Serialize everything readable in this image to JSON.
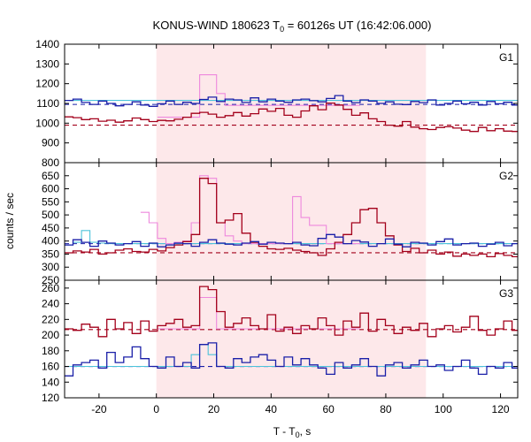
{
  "chart_data": {
    "type": "line",
    "title_main": "KONUS-WIND 180623 T",
    "title_sub": "0",
    "title_rest": " = 60126s UT (16:42:06.000)",
    "xlabel_main": "T - T",
    "xlabel_sub": "0",
    "xlabel_rest": ", s",
    "ylabel": "counts / sec",
    "xlim": [
      -32,
      126
    ],
    "xticks": [
      -20,
      0,
      20,
      40,
      60,
      80,
      100,
      120
    ],
    "shade_range": [
      0,
      94
    ],
    "colors": {
      "shade": "#fde8ea",
      "dark_red": "#a3001b",
      "blue": "#1a1fa8",
      "pink": "#ee88dd",
      "cyan": "#4cc3da"
    },
    "panels": [
      {
        "name": "G1",
        "ylim": [
          800,
          1400
        ],
        "yticks": [
          800,
          900,
          1000,
          1100,
          1200,
          1300,
          1400
        ],
        "background_levels": {
          "dark_red": 990,
          "blue": 1095
        },
        "bin_start": -32,
        "bin_width": 2.944,
        "series": [
          {
            "name": "",
            "color": "dark_red",
            "values": [
              1032,
              1028,
              1018,
              1022,
              1010,
              1015,
              1005,
              1012,
              1026,
              1018,
              1008,
              1014,
              1012,
              1020,
              1030,
              1050,
              1055,
              1046,
              1030,
              1038,
              1054,
              1036,
              1048,
              1072,
              1060,
              1075,
              1040,
              1030,
              1062,
              1088,
              1068,
              1102,
              1092,
              1070,
              1040,
              1052,
              1022,
              1008,
              990,
              985,
              1008,
              980,
              972,
              968,
              978,
              982,
              975,
              965,
              958,
              978,
              962,
              972,
              960,
              958,
              965,
              955,
              952,
              950
            ]
          },
          {
            "name": "",
            "color": "blue",
            "values": [
              1115,
              1122,
              1105,
              1095,
              1112,
              1100,
              1088,
              1095,
              1108,
              1092,
              1085,
              1098,
              1112,
              1095,
              1106,
              1100,
              1120,
              1132,
              1110,
              1122,
              1118,
              1105,
              1128,
              1108,
              1122,
              1112,
              1106,
              1118,
              1122,
              1114,
              1108,
              1125,
              1140,
              1112,
              1104,
              1118,
              1112,
              1100,
              1108,
              1096,
              1094,
              1110,
              1104,
              1118,
              1092,
              1100,
              1112,
              1098,
              1106,
              1092,
              1110,
              1098,
              1106,
              1092,
              1112,
              1098,
              1092,
              1110
            ]
          },
          {
            "name": "",
            "color": "pink",
            "values": [
              null,
              null,
              null,
              null,
              null,
              null,
              null,
              null,
              null,
              null,
              null,
              1030,
              1030,
              1030,
              1030,
              1030,
              1245,
              1245,
              1150,
              1090,
              1090,
              1090,
              1090,
              1090,
              1090,
              1090,
              1090,
              1090,
              1090,
              1090,
              1090,
              1090,
              1090,
              1090,
              1090,
              null,
              null,
              null,
              null,
              null,
              null,
              null,
              null,
              null,
              null,
              null,
              null,
              null,
              null,
              null,
              null,
              null,
              null,
              null,
              null,
              null,
              null,
              null
            ]
          },
          {
            "name": "",
            "color": "cyan",
            "values": [
              1115,
              1115,
              1115,
              1115,
              1115,
              1115,
              1115,
              1115,
              1115,
              1115,
              1115,
              1115,
              1115,
              1115,
              1115,
              1115,
              1115,
              1115,
              1115,
              1115,
              1115,
              1115,
              1115,
              1115,
              1115,
              1115,
              1115,
              1115,
              1115,
              1115,
              1115,
              1115,
              1115,
              1115,
              1115,
              1115,
              1115,
              1115,
              1115,
              1115,
              1115,
              1115,
              1115,
              1115,
              1115,
              1115,
              1115,
              1115,
              1115,
              1115,
              1115,
              1115,
              1115,
              1115,
              1115,
              1115,
              1115,
              1115
            ]
          }
        ]
      },
      {
        "name": "G2",
        "ylim": [
          250,
          700
        ],
        "yticks": [
          250,
          300,
          350,
          400,
          450,
          500,
          550,
          600,
          650
        ],
        "background_levels": {
          "dark_red": 355,
          "blue": 390
        },
        "bin_start": -32,
        "bin_width": 2.944,
        "series": [
          {
            "name": "",
            "color": "dark_red",
            "values": [
              355,
              362,
              358,
              368,
              350,
              355,
              365,
              370,
              360,
              358,
              368,
              362,
              375,
              385,
              398,
              425,
              640,
              620,
              470,
              480,
              505,
              430,
              395,
              380,
              370,
              368,
              372,
              365,
              360,
              355,
              345,
              370,
              395,
              425,
              470,
              520,
              525,
              470,
              420,
              385,
              360,
              372,
              355,
              365,
              350,
              358,
              342,
              350,
              345,
              350,
              340,
              352,
              345,
              340,
              348,
              342,
              338,
              345
            ]
          },
          {
            "name": "",
            "color": "blue",
            "values": [
              385,
              405,
              395,
              380,
              400,
              392,
              385,
              390,
              398,
              380,
              392,
              378,
              385,
              392,
              390,
              380,
              395,
              405,
              392,
              388,
              385,
              392,
              398,
              388,
              395,
              392,
              390,
              395,
              385,
              382,
              410,
              425,
              415,
              390,
              402,
              396,
              380,
              390,
              408,
              388,
              378,
              395,
              392,
              385,
              398,
              408,
              385,
              390,
              392,
              380,
              388,
              395,
              382,
              390,
              398,
              388,
              392,
              395
            ]
          },
          {
            "name": "",
            "color": "pink",
            "values": [
              null,
              null,
              null,
              null,
              null,
              null,
              null,
              null,
              null,
              510,
              470,
              410,
              390,
              395,
              400,
              470,
              650,
              640,
              470,
              420,
              400,
              390,
              390,
              390,
              390,
              390,
              390,
              570,
              490,
              460,
              460,
              390,
              390,
              390,
              390,
              null,
              null,
              null,
              null,
              null,
              null,
              null,
              null,
              null,
              null,
              null,
              null,
              null,
              null,
              null,
              null,
              null,
              null,
              null,
              null,
              null,
              null,
              null
            ]
          },
          {
            "name": "",
            "color": "cyan",
            "values": [
              385,
              395,
              440,
              395,
              392,
              390,
              390,
              390,
              390,
              390,
              390,
              390,
              390,
              390,
              390,
              390,
              390,
              390,
              390,
              390,
              390,
              390,
              390,
              390,
              390,
              390,
              390,
              390,
              390,
              390,
              390,
              390,
              390,
              390,
              390,
              390,
              390,
              390,
              390,
              390,
              390,
              390,
              390,
              390,
              390,
              390,
              390,
              390,
              390,
              390,
              390,
              390,
              390,
              390,
              390,
              390,
              390,
              390
            ]
          }
        ]
      },
      {
        "name": "G3",
        "ylim": [
          120,
          270
        ],
        "yticks": [
          120,
          140,
          160,
          180,
          200,
          220,
          240,
          260
        ],
        "background_levels": {
          "dark_red": 207,
          "blue": 160
        },
        "bin_start": -32,
        "bin_width": 2.944,
        "series": [
          {
            "name": "",
            "color": "dark_red",
            "values": [
              208,
              206,
              214,
              210,
              198,
              220,
              208,
              216,
              202,
              218,
              205,
              212,
              215,
              220,
              210,
              212,
              262,
              258,
              230,
              210,
              215,
              222,
              212,
              208,
              226,
              205,
              210,
              202,
              212,
              208,
              222,
              212,
              200,
              218,
              210,
              228,
              205,
              220,
              212,
              202,
              210,
              206,
              215,
              198,
              208,
              212,
              204,
              210,
              224,
              206,
              200,
              208,
              218,
              206,
              210,
              200,
              214,
              205
            ]
          },
          {
            "name": "",
            "color": "blue",
            "values": [
              148,
              162,
              165,
              168,
              158,
              178,
              165,
              172,
              185,
              170,
              160,
              158,
              172,
              160,
              165,
              158,
              188,
              190,
              160,
              158,
              170,
              165,
              172,
              175,
              168,
              160,
              172,
              162,
              170,
              162,
              158,
              150,
              165,
              158,
              162,
              170,
              160,
              148,
              162,
              165,
              158,
              162,
              168,
              160,
              162,
              155,
              160,
              168,
              158,
              150,
              160,
              158,
              165,
              158,
              162,
              168,
              160,
              162
            ]
          },
          {
            "name": "",
            "color": "pink",
            "values": [
              null,
              null,
              null,
              null,
              null,
              null,
              null,
              null,
              null,
              null,
              null,
              208,
              208,
              208,
              208,
              208,
              248,
              248,
              208,
              208,
              208,
              208,
              208,
              208,
              208,
              208,
              208,
              208,
              208,
              208,
              208,
              208,
              208,
              208,
              208,
              null,
              null,
              null,
              null,
              null,
              null,
              null,
              null,
              null,
              null,
              null,
              null,
              null,
              null,
              null,
              null,
              null,
              null,
              null,
              null,
              null,
              null,
              null
            ]
          },
          {
            "name": "",
            "color": "cyan",
            "values": [
              160,
              160,
              160,
              160,
              160,
              160,
              160,
              160,
              160,
              160,
              160,
              160,
              160,
              160,
              160,
              175,
              188,
              175,
              160,
              160,
              160,
              160,
              160,
              160,
              160,
              160,
              160,
              160,
              160,
              160,
              160,
              160,
              160,
              160,
              160,
              160,
              160,
              160,
              160,
              160,
              160,
              160,
              160,
              160,
              160,
              160,
              160,
              160,
              160,
              160,
              160,
              160,
              160,
              160,
              160,
              160,
              160,
              160
            ]
          }
        ]
      }
    ]
  }
}
